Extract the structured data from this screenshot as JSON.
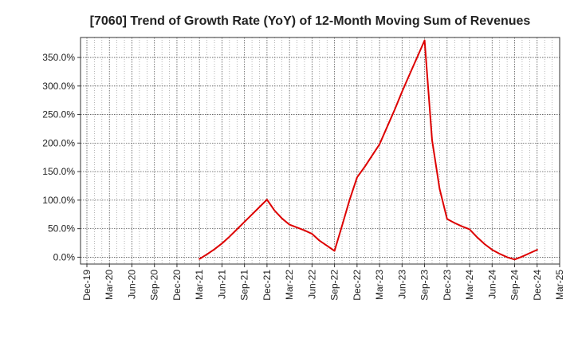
{
  "chart_data": {
    "type": "line",
    "title": "[7060]  Trend of Growth Rate (YoY) of 12-Month Moving Sum of Revenues",
    "xlabel": "",
    "ylabel": "",
    "x_ticks": [
      "Dec-19",
      "Mar-20",
      "Jun-20",
      "Sep-20",
      "Dec-20",
      "Mar-21",
      "Jun-21",
      "Sep-21",
      "Dec-21",
      "Mar-22",
      "Jun-22",
      "Sep-22",
      "Dec-22",
      "Mar-23",
      "Jun-23",
      "Sep-23",
      "Dec-23",
      "Mar-24",
      "Jun-24",
      "Sep-24",
      "Dec-24",
      "Mar-25"
    ],
    "y_ticks": [
      "0.0%",
      "50.0%",
      "100.0%",
      "150.0%",
      "200.0%",
      "250.0%",
      "300.0%",
      "350.0%"
    ],
    "ylim": [
      -12,
      385
    ],
    "grid": true,
    "series": [
      {
        "color": "#dd0000",
        "x": [
          "Mar-21",
          "Apr-21",
          "May-21",
          "Jun-21",
          "Jul-21",
          "Aug-21",
          "Sep-21",
          "Oct-21",
          "Nov-21",
          "Dec-21",
          "Jan-22",
          "Feb-22",
          "Mar-22",
          "Apr-22",
          "May-22",
          "Jun-22",
          "Jul-22",
          "Aug-22",
          "Sep-22",
          "Oct-22",
          "Nov-22",
          "Dec-22",
          "Jan-23",
          "Feb-23",
          "Mar-23",
          "Apr-23",
          "May-23",
          "Jun-23",
          "Jul-23",
          "Aug-23",
          "Sep-23",
          "Oct-23",
          "Nov-23",
          "Dec-23",
          "Jan-24",
          "Feb-24",
          "Mar-24",
          "Apr-24",
          "May-24",
          "Jun-24",
          "Jul-24",
          "Aug-24",
          "Sep-24",
          "Oct-24",
          "Nov-24",
          "Dec-24"
        ],
        "values": [
          -3,
          5,
          14,
          24,
          36,
          49,
          62,
          75,
          88,
          101,
          82,
          68,
          57,
          52,
          47,
          41,
          29,
          20,
          11,
          55,
          100,
          140,
          158,
          178,
          198,
          228,
          258,
          290,
          320,
          350,
          380,
          205,
          120,
          67,
          60,
          54,
          49,
          35,
          23,
          13,
          6,
          0,
          -4,
          1,
          7,
          13
        ]
      }
    ]
  }
}
